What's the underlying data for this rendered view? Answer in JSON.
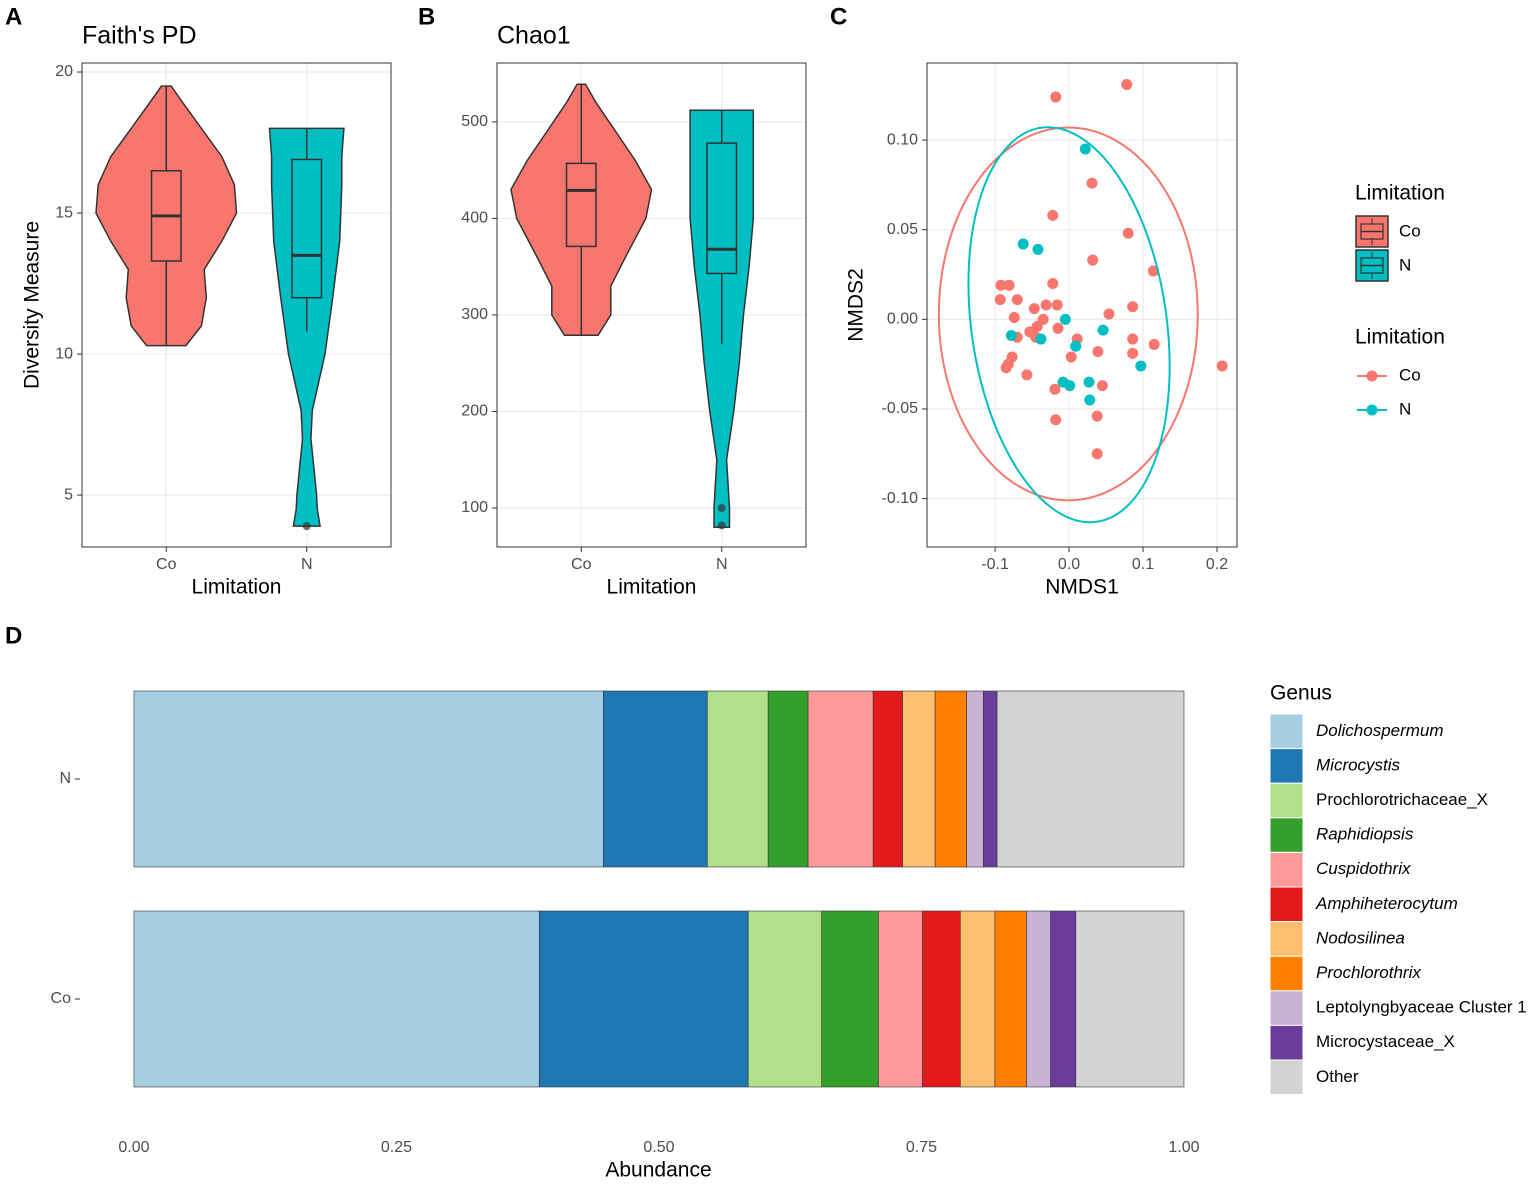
{
  "chart_data": [
    {
      "type": "violin",
      "panel": "A",
      "title": "Faith's PD",
      "ylabel": "Diversity Measure",
      "xlabel": "Limitation",
      "categories": [
        "Co",
        "N"
      ],
      "colors": [
        "#f8766d",
        "#00bfc4"
      ],
      "ylim": [
        3.16,
        20.32
      ],
      "yticks": [
        5,
        10,
        15,
        20
      ],
      "grid": true,
      "legend": {
        "title": "Limitation"
      },
      "groups": [
        {
          "violin_y": [
            10.3,
            11,
            12,
            13,
            14,
            15,
            16,
            17,
            18,
            19,
            19.5
          ],
          "violin_width": [
            0.28,
            0.5,
            0.57,
            0.54,
            0.79,
            1,
            0.97,
            0.79,
            0.5,
            0.21,
            0.07
          ],
          "whisker_low": 10.3,
          "q1": 13.3,
          "median": 14.9,
          "q3": 16.5,
          "whisker_high": 19.5
        },
        {
          "violin_y": [
            3.9,
            4.5,
            5,
            6,
            7,
            8,
            10,
            12,
            14,
            16,
            17,
            18
          ],
          "violin_width": [
            0.19,
            0.15,
            0.14,
            0.1,
            0.06,
            0.08,
            0.26,
            0.37,
            0.47,
            0.5,
            0.5,
            0.53
          ],
          "whisker_low": 10.8,
          "q1": 12.0,
          "median": 13.5,
          "q3": 16.9,
          "whisker_high": 18.0,
          "outliers": [
            3.9
          ]
        }
      ]
    },
    {
      "type": "violin",
      "panel": "B",
      "title": "Chao1",
      "xlabel": "Limitation",
      "categories": [
        "Co",
        "N"
      ],
      "colors": [
        "#f8766d",
        "#00bfc4"
      ],
      "ylim": [
        59.6,
        561
      ],
      "yticks": [
        100,
        200,
        300,
        400,
        500
      ],
      "grid": true,
      "groups": [
        {
          "violin_y": [
            279,
            300,
            330,
            360,
            400,
            430,
            460,
            490,
            520,
            539
          ],
          "violin_width": [
            0.24,
            0.42,
            0.42,
            0.63,
            0.92,
            1,
            0.77,
            0.49,
            0.21,
            0.06
          ],
          "whisker_low": 279,
          "q1": 371,
          "median": 429,
          "q3": 457,
          "whisker_high": 539
        },
        {
          "violin_y": [
            80,
            100,
            150,
            200,
            250,
            300,
            350,
            400,
            450,
            500,
            512
          ],
          "violin_width": [
            0.11,
            0.11,
            0.07,
            0.17,
            0.25,
            0.31,
            0.39,
            0.45,
            0.45,
            0.45,
            0.45
          ],
          "whisker_low": 270,
          "q1": 343,
          "median": 368,
          "q3": 478,
          "whisker_high": 512,
          "outliers": [
            100,
            82
          ]
        }
      ]
    },
    {
      "type": "scatter",
      "panel": "C",
      "xlabel": "NMDS1",
      "ylabel": "NMDS2",
      "xlim": [
        -0.192,
        0.227
      ],
      "ylim": [
        -0.127,
        0.143
      ],
      "xticks": [
        -0.1,
        {
          "value": 0,
          "label": "0.0"
        },
        0.1,
        0.2
      ],
      "yticks": [
        {
          "value": -0.1,
          "label": "-0.10"
        },
        {
          "value": -0.05,
          "label": "-0.05"
        },
        {
          "value": 0,
          "label": "0.00"
        },
        {
          "value": 0.05,
          "label": "0.05"
        },
        {
          "value": 0.1,
          "label": "0.10"
        }
      ],
      "grid": true,
      "legend": {
        "title": "Limitation"
      },
      "series": [
        {
          "name": "Co",
          "color": "#f8766d",
          "x": [
            -0.018,
            0.078,
            0.031,
            -0.022,
            0.08,
            0.032,
            0.114,
            -0.092,
            -0.081,
            -0.022,
            -0.093,
            -0.07,
            -0.074,
            -0.047,
            -0.031,
            -0.016,
            0.086,
            0.054,
            -0.035,
            -0.053,
            -0.043,
            -0.045,
            -0.015,
            -0.07,
            0.011,
            0.086,
            0.115,
            -0.082,
            -0.077,
            -0.085,
            -0.057,
            0.003,
            0.039,
            0.086,
            0.207,
            -0.019,
            0.045,
            -0.018,
            0.038,
            0.038
          ],
          "y": [
            0.124,
            0.131,
            0.076,
            0.058,
            0.048,
            0.033,
            0.027,
            0.019,
            0.019,
            0.02,
            0.011,
            0.011,
            0.001,
            0.006,
            0.008,
            0.008,
            0.007,
            0.003,
            0.0,
            -0.007,
            -0.004,
            -0.01,
            -0.005,
            -0.01,
            -0.011,
            -0.011,
            -0.014,
            -0.025,
            -0.021,
            -0.027,
            -0.031,
            -0.021,
            -0.018,
            -0.019,
            -0.026,
            -0.039,
            -0.037,
            -0.056,
            -0.054,
            -0.075
          ],
          "ellipse": {
            "center": [
              -0.001,
              0.003
            ],
            "radius": [
              0.175,
              0.104
            ],
            "angle": 0
          }
        },
        {
          "name": "N",
          "color": "#00bfc4",
          "x": [
            0.022,
            -0.062,
            -0.042,
            -0.078,
            -0.038,
            -0.005,
            0.009,
            0.046,
            -0.008,
            0.001,
            0.027,
            0.028,
            0.097
          ],
          "y": [
            0.095,
            0.042,
            0.039,
            -0.009,
            -0.011,
            0.0,
            -0.015,
            -0.006,
            -0.035,
            -0.037,
            -0.035,
            -0.045,
            -0.026
          ],
          "ellipse": {
            "center": [
              0,
              -0.003
            ],
            "radius": [
              0.132,
              0.111
            ],
            "angle": -8
          }
        }
      ]
    },
    {
      "type": "stacked_bar_h",
      "panel": "D",
      "xlabel": "Abundance",
      "legend": {
        "title": "Genus"
      },
      "categories": [
        "N",
        "Co"
      ],
      "xlim": [
        -0.0514,
        1.0505
      ],
      "xticks": [
        {
          "value": 0,
          "label": "0.00"
        },
        {
          "value": 0.25,
          "label": "0.25"
        },
        {
          "value": 0.5,
          "label": "0.50"
        },
        {
          "value": 0.75,
          "label": "0.75"
        },
        {
          "value": 1,
          "label": "1.00"
        }
      ],
      "series": [
        {
          "name": "Dolichospermum",
          "color": "#a6cee3",
          "italic": true,
          "values": [
            0.447,
            0.386
          ]
        },
        {
          "name": "Microcystis",
          "color": "#1f78b4",
          "italic": true,
          "values": [
            0.099,
            0.199
          ]
        },
        {
          "name": "Prochlorotrichaceae_X",
          "color": "#b2df8a",
          "italic": false,
          "values": [
            0.058,
            0.07
          ]
        },
        {
          "name": "Raphidiopsis",
          "color": "#33a02c",
          "italic": true,
          "values": [
            0.038,
            0.054
          ]
        },
        {
          "name": "Cuspidothrix",
          "color": "#fb9a99",
          "italic": true,
          "values": [
            0.062,
            0.042
          ]
        },
        {
          "name": "Amphiheterocytum",
          "color": "#e31a1c",
          "italic": true,
          "values": [
            0.028,
            0.036
          ]
        },
        {
          "name": "Nodosilinea",
          "color": "#fdbf6f",
          "italic": true,
          "values": [
            0.031,
            0.033
          ]
        },
        {
          "name": "Prochlorothrix",
          "color": "#ff7f00",
          "italic": true,
          "values": [
            0.03,
            0.03
          ]
        },
        {
          "name": "Leptolyngbyaceae Cluster 1",
          "color": "#cab2d6",
          "italic": false,
          "values": [
            0.016,
            0.023
          ]
        },
        {
          "name": "Microcystaceae_X",
          "color": "#6a3d9a",
          "italic": false,
          "values": [
            0.013,
            0.024
          ]
        },
        {
          "name": "Other",
          "color": "#d3d3d3",
          "italic": false,
          "values": [
            0.178,
            0.103
          ]
        }
      ]
    }
  ]
}
